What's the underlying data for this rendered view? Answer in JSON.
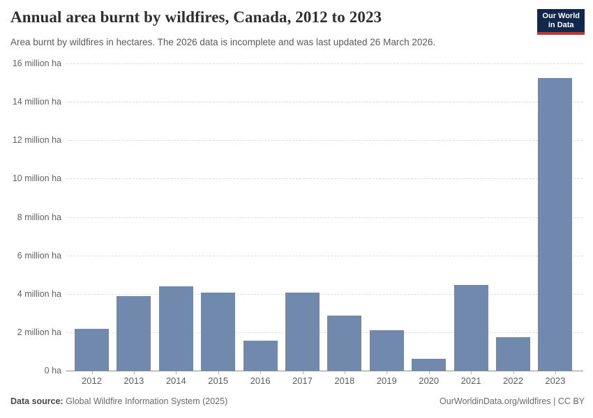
{
  "header": {
    "title": "Annual area burnt by wildfires, Canada, 2012 to 2023",
    "subtitle": "Area burnt by wildfires in hectares. The 2026 data is incomplete and was last updated 26 March 2026.",
    "logo": {
      "line1": "Our World",
      "line2": "in Data",
      "bg_color": "#12284a",
      "accent_color": "#c1392f"
    }
  },
  "chart_data": {
    "type": "bar",
    "title": "Annual area burnt by wildfires, Canada, 2012 to 2023",
    "categories": [
      "2012",
      "2013",
      "2014",
      "2015",
      "2016",
      "2017",
      "2018",
      "2019",
      "2020",
      "2021",
      "2022",
      "2023"
    ],
    "values": [
      2.18,
      3.9,
      4.38,
      4.08,
      1.55,
      4.05,
      2.88,
      2.1,
      0.62,
      4.45,
      1.74,
      15.25
    ],
    "unit": "million ha",
    "xlabel": "",
    "ylabel": "",
    "ylim": [
      0,
      16
    ],
    "ytick_step": 2,
    "ytick_labels": [
      "0 ha",
      "2 million ha",
      "4 million ha",
      "6 million ha",
      "8 million ha",
      "10 million ha",
      "12 million ha",
      "14 million ha",
      "16 million ha"
    ],
    "grid": "horizontal dashed",
    "legend": "none",
    "bar_color": "#7189ad"
  },
  "footer": {
    "source_label": "Data source:",
    "source_text": " Global Wildfire Information System (2025)",
    "attribution": "OurWorldinData.org/wildfires | CC BY"
  }
}
